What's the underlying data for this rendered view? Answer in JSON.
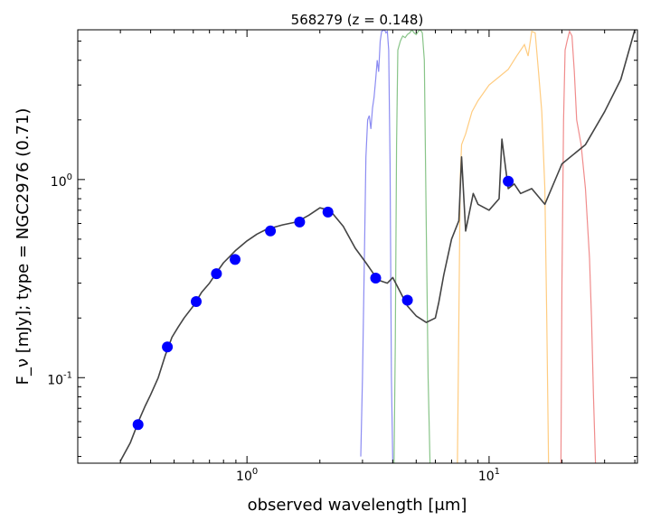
{
  "chart_data": {
    "type": "scatter",
    "title": "568279 (z = 0.148)",
    "xlabel": "observed wavelength [μm]",
    "ylabel": "F_ν [mJy];  type = NGC2976 (0.71)",
    "x_scale": "log",
    "y_scale": "log",
    "xlim": [
      0.2,
      41
    ],
    "ylim": [
      0.037,
      5.7
    ],
    "grid": false,
    "x_ticks": [
      {
        "value": 1,
        "label": "10",
        "exp": "0"
      },
      {
        "value": 10,
        "label": "10",
        "exp": "1"
      }
    ],
    "y_ticks": [
      {
        "value": 0.1,
        "label": "10",
        "exp": "-1"
      },
      {
        "value": 1,
        "label": "10",
        "exp": "0"
      }
    ],
    "photometry": {
      "color": "#0000ff",
      "x": [
        0.355,
        0.469,
        0.617,
        0.748,
        0.893,
        1.25,
        1.65,
        2.16,
        3.4,
        4.6,
        12.0
      ],
      "y": [
        0.058,
        0.143,
        0.242,
        0.335,
        0.395,
        0.55,
        0.61,
        0.685,
        0.318,
        0.246,
        0.98
      ]
    },
    "template_sed": {
      "color": "#444444",
      "x": [
        0.3,
        0.33,
        0.36,
        0.38,
        0.4,
        0.43,
        0.46,
        0.49,
        0.52,
        0.55,
        0.6,
        0.65,
        0.7,
        0.75,
        0.8,
        0.9,
        1.0,
        1.1,
        1.2,
        1.4,
        1.6,
        1.8,
        2.0,
        2.2,
        2.5,
        2.8,
        3.1,
        3.3,
        3.5,
        3.8,
        4.0,
        4.3,
        4.6,
        5.0,
        5.5,
        6.0,
        6.2,
        6.5,
        7.0,
        7.5,
        7.7,
        8.0,
        8.6,
        9.0,
        10.0,
        11.0,
        11.3,
        12.0,
        12.7,
        13.5,
        15.0,
        17.0,
        20.0,
        25.0,
        30.0,
        35.0,
        40.0
      ],
      "y": [
        0.038,
        0.047,
        0.062,
        0.072,
        0.082,
        0.1,
        0.13,
        0.16,
        0.18,
        0.2,
        0.23,
        0.27,
        0.3,
        0.34,
        0.38,
        0.44,
        0.49,
        0.53,
        0.56,
        0.59,
        0.61,
        0.66,
        0.72,
        0.7,
        0.58,
        0.45,
        0.38,
        0.34,
        0.31,
        0.3,
        0.32,
        0.27,
        0.23,
        0.205,
        0.19,
        0.2,
        0.24,
        0.33,
        0.5,
        0.62,
        1.3,
        0.55,
        0.85,
        0.75,
        0.7,
        0.8,
        1.6,
        0.9,
        0.95,
        0.85,
        0.9,
        0.75,
        1.2,
        1.5,
        2.2,
        3.2,
        5.7
      ]
    },
    "filter_curves": [
      {
        "name": "",
        "color": "#8c8cf2",
        "x": [
          2.95,
          3.0,
          3.05,
          3.1,
          3.15,
          3.2,
          3.25,
          3.3,
          3.35,
          3.4,
          3.45,
          3.5,
          3.55,
          3.6,
          3.7,
          3.75,
          3.8,
          3.85,
          3.9,
          3.95,
          4.0
        ],
        "y": [
          0.04,
          0.1,
          0.35,
          1.3,
          2.0,
          2.1,
          1.8,
          2.3,
          2.6,
          3.2,
          4.0,
          3.5,
          5.0,
          5.6,
          5.7,
          5.5,
          5.6,
          4.5,
          1.2,
          0.1,
          0.037
        ]
      },
      {
        "name": "",
        "color": "#88c488",
        "x": [
          4.05,
          4.1,
          4.15,
          4.2,
          4.3,
          4.4,
          4.5,
          4.6,
          4.7,
          4.8,
          4.9,
          5.0,
          5.1,
          5.2,
          5.3,
          5.4,
          5.5,
          5.6,
          5.7
        ],
        "y": [
          0.037,
          0.15,
          1.5,
          4.5,
          5.0,
          5.3,
          5.2,
          5.4,
          5.5,
          5.7,
          5.5,
          5.4,
          5.6,
          5.7,
          5.5,
          4.0,
          0.6,
          0.1,
          0.037
        ]
      },
      {
        "name": "",
        "color": "#ffcc80",
        "x": [
          7.4,
          7.5,
          7.6,
          7.7,
          8.0,
          8.5,
          9.0,
          10.0,
          11.0,
          12.0,
          13.0,
          14.0,
          14.5,
          15.0,
          15.5,
          16.0,
          16.5,
          17.0,
          17.3,
          17.6
        ],
        "y": [
          0.037,
          0.2,
          1.0,
          1.5,
          1.7,
          2.2,
          2.5,
          3.0,
          3.3,
          3.6,
          4.2,
          4.8,
          4.2,
          5.6,
          5.5,
          3.5,
          2.2,
          0.9,
          0.2,
          0.037
        ]
      },
      {
        "name": "",
        "color": "#f08c8c",
        "x": [
          19.8,
          20.0,
          20.3,
          20.6,
          21.0,
          21.5,
          22.0,
          22.5,
          23.0,
          24.0,
          25.0,
          26.0,
          26.5,
          27.0,
          27.5
        ],
        "y": [
          0.037,
          0.3,
          2.0,
          4.5,
          5.0,
          5.6,
          5.3,
          3.5,
          2.0,
          1.5,
          0.9,
          0.4,
          0.2,
          0.08,
          0.037
        ]
      }
    ]
  }
}
